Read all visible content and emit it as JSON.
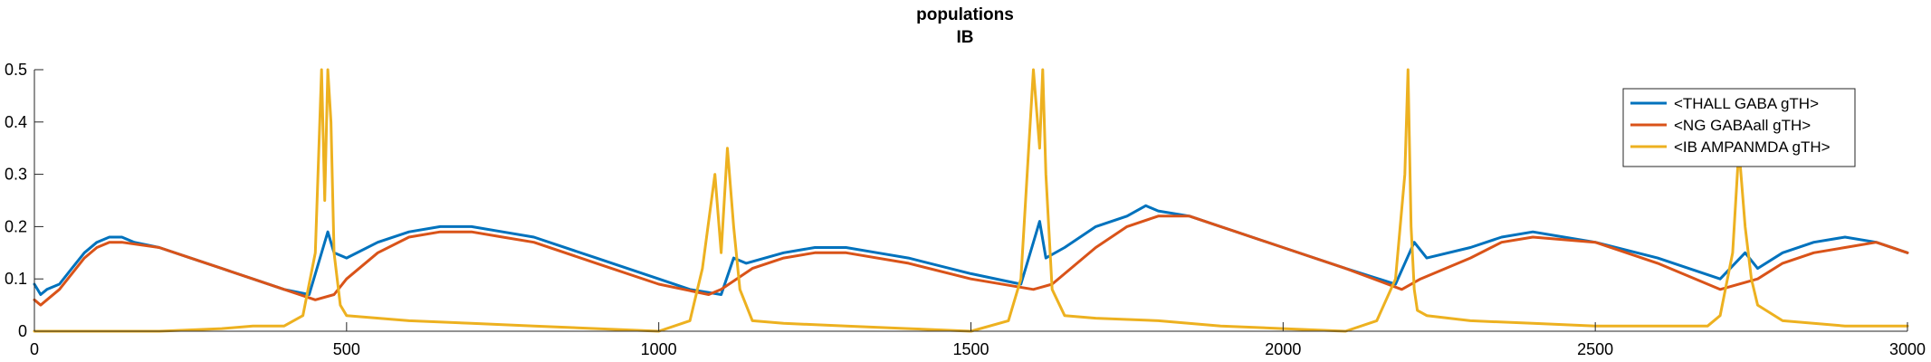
{
  "chart_data": {
    "type": "line",
    "title": "populations",
    "subtitle": "IB",
    "xlabel": "",
    "ylabel": "",
    "xlim": [
      0,
      3000
    ],
    "ylim": [
      0,
      0.5
    ],
    "x_ticks": [
      0,
      500,
      1000,
      1500,
      2000,
      2500,
      3000
    ],
    "x_tick_labels": [
      "0",
      "500",
      "1000",
      "1500",
      "2000",
      "2500",
      "3000"
    ],
    "y_ticks": [
      0,
      0.1,
      0.2,
      0.3,
      0.4,
      0.5
    ],
    "y_tick_labels": [
      "0",
      "0.1",
      "0.2",
      "0.3",
      "0.4",
      "0.5"
    ],
    "grid": false,
    "legend_position": "top-right",
    "series": [
      {
        "name": "<THALL GABA gTH>",
        "color": "#0072BD",
        "x": [
          0,
          10,
          20,
          40,
          60,
          80,
          100,
          120,
          140,
          160,
          200,
          250,
          300,
          350,
          400,
          440,
          470,
          480,
          500,
          550,
          600,
          650,
          700,
          750,
          800,
          900,
          1000,
          1050,
          1100,
          1120,
          1140,
          1200,
          1250,
          1300,
          1350,
          1400,
          1500,
          1580,
          1610,
          1620,
          1650,
          1700,
          1750,
          1780,
          1800,
          1850,
          1900,
          2000,
          2100,
          2180,
          2210,
          2230,
          2300,
          2350,
          2400,
          2450,
          2500,
          2600,
          2700,
          2740,
          2760,
          2800,
          2850,
          2900,
          2950,
          3000
        ],
        "values": [
          0.09,
          0.07,
          0.08,
          0.09,
          0.12,
          0.15,
          0.17,
          0.18,
          0.18,
          0.17,
          0.16,
          0.14,
          0.12,
          0.1,
          0.08,
          0.07,
          0.19,
          0.15,
          0.14,
          0.17,
          0.19,
          0.2,
          0.2,
          0.19,
          0.18,
          0.14,
          0.1,
          0.08,
          0.07,
          0.14,
          0.13,
          0.15,
          0.16,
          0.16,
          0.15,
          0.14,
          0.11,
          0.09,
          0.21,
          0.14,
          0.16,
          0.2,
          0.22,
          0.24,
          0.23,
          0.22,
          0.2,
          0.16,
          0.12,
          0.09,
          0.17,
          0.14,
          0.16,
          0.18,
          0.19,
          0.18,
          0.17,
          0.14,
          0.1,
          0.15,
          0.12,
          0.15,
          0.17,
          0.18,
          0.17,
          0.15
        ]
      },
      {
        "name": "<NG GABAall gTH>",
        "color": "#D95319",
        "x": [
          0,
          10,
          20,
          40,
          60,
          80,
          100,
          120,
          140,
          200,
          250,
          300,
          350,
          400,
          450,
          480,
          500,
          550,
          600,
          650,
          700,
          750,
          800,
          900,
          1000,
          1080,
          1100,
          1150,
          1200,
          1250,
          1300,
          1400,
          1500,
          1600,
          1630,
          1700,
          1750,
          1800,
          1850,
          1900,
          2000,
          2100,
          2190,
          2220,
          2300,
          2350,
          2400,
          2500,
          2600,
          2700,
          2760,
          2800,
          2850,
          2900,
          2950,
          3000
        ],
        "values": [
          0.06,
          0.05,
          0.06,
          0.08,
          0.11,
          0.14,
          0.16,
          0.17,
          0.17,
          0.16,
          0.14,
          0.12,
          0.1,
          0.08,
          0.06,
          0.07,
          0.1,
          0.15,
          0.18,
          0.19,
          0.19,
          0.18,
          0.17,
          0.13,
          0.09,
          0.07,
          0.08,
          0.12,
          0.14,
          0.15,
          0.15,
          0.13,
          0.1,
          0.08,
          0.09,
          0.16,
          0.2,
          0.22,
          0.22,
          0.2,
          0.16,
          0.12,
          0.08,
          0.1,
          0.14,
          0.17,
          0.18,
          0.17,
          0.13,
          0.08,
          0.1,
          0.13,
          0.15,
          0.16,
          0.17,
          0.15
        ]
      },
      {
        "name": "<IB AMPANMDA gTH>",
        "color": "#EDB120",
        "x": [
          0,
          100,
          200,
          300,
          350,
          400,
          430,
          450,
          460,
          465,
          470,
          475,
          480,
          490,
          500,
          600,
          700,
          800,
          900,
          1000,
          1050,
          1070,
          1090,
          1100,
          1110,
          1120,
          1130,
          1150,
          1200,
          1300,
          1400,
          1500,
          1560,
          1580,
          1600,
          1610,
          1615,
          1620,
          1630,
          1650,
          1700,
          1800,
          1900,
          2000,
          2100,
          2150,
          2180,
          2195,
          2200,
          2205,
          2210,
          2215,
          2230,
          2300,
          2400,
          2500,
          2600,
          2680,
          2700,
          2720,
          2730,
          2740,
          2750,
          2760,
          2800,
          2900,
          3000
        ],
        "values": [
          0.0,
          0.0,
          0.0,
          0.005,
          0.01,
          0.01,
          0.03,
          0.15,
          0.5,
          0.25,
          0.5,
          0.4,
          0.15,
          0.05,
          0.03,
          0.02,
          0.015,
          0.01,
          0.005,
          0.0,
          0.02,
          0.12,
          0.3,
          0.15,
          0.35,
          0.2,
          0.08,
          0.02,
          0.015,
          0.01,
          0.005,
          0.0,
          0.02,
          0.1,
          0.5,
          0.35,
          0.5,
          0.3,
          0.08,
          0.03,
          0.025,
          0.02,
          0.01,
          0.005,
          0.0,
          0.02,
          0.1,
          0.3,
          0.5,
          0.2,
          0.08,
          0.04,
          0.03,
          0.02,
          0.015,
          0.01,
          0.01,
          0.01,
          0.03,
          0.15,
          0.35,
          0.2,
          0.1,
          0.05,
          0.02,
          0.01,
          0.01
        ]
      }
    ]
  }
}
